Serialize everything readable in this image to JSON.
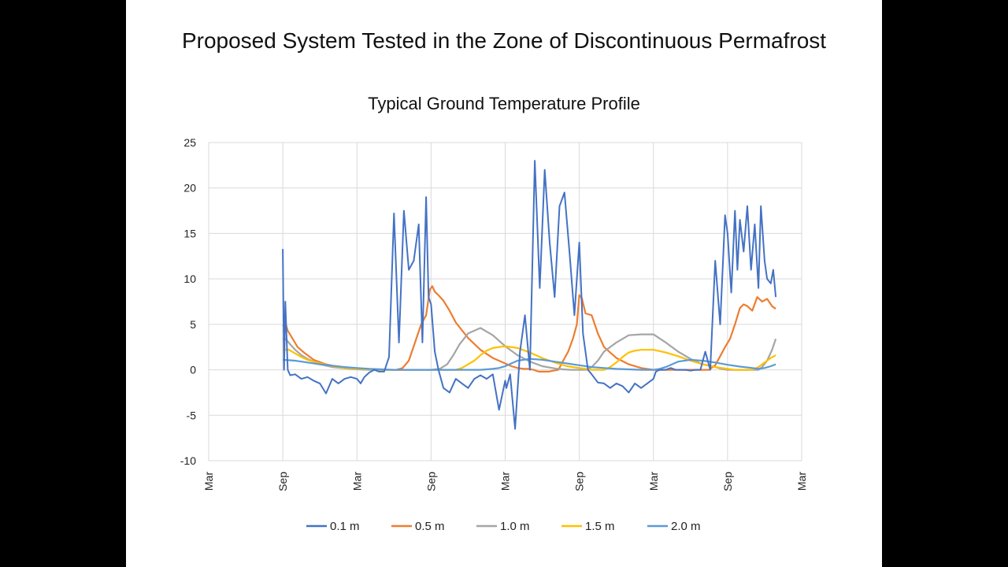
{
  "slide": {
    "title": "Proposed System  Tested in the Zone of Discontinuous Permafrost"
  },
  "chart_data": {
    "type": "line",
    "title": "Typical Ground Temperature Profile",
    "xlabel": "",
    "ylabel": "",
    "ylim": [
      -10,
      25
    ],
    "yticks": [
      25,
      20,
      15,
      10,
      5,
      0,
      -5,
      -10
    ],
    "x_unit": "months since first Mar tick",
    "xlim": [
      0,
      48
    ],
    "xticks": [
      {
        "value": 0,
        "label": "Mar"
      },
      {
        "value": 6,
        "label": "Sep"
      },
      {
        "value": 12,
        "label": "Mar"
      },
      {
        "value": 18,
        "label": "Sep"
      },
      {
        "value": 24,
        "label": "Mar"
      },
      {
        "value": 30,
        "label": "Sep"
      },
      {
        "value": 36,
        "label": "Mar"
      },
      {
        "value": 42,
        "label": "Sep"
      },
      {
        "value": 48,
        "label": "Mar"
      }
    ],
    "grid": true,
    "legend_position": "bottom",
    "series": [
      {
        "name": "0.1 m",
        "color": "#4472C4",
        "x": [
          6.0,
          6.1,
          6.2,
          6.4,
          6.6,
          7.0,
          7.5,
          8.0,
          8.5,
          9.0,
          9.5,
          10.0,
          10.5,
          11.0,
          11.5,
          12.0,
          12.3,
          12.6,
          13.0,
          13.4,
          13.8,
          14.2,
          14.6,
          15.0,
          15.4,
          15.8,
          16.2,
          16.6,
          17.0,
          17.3,
          17.6,
          17.8,
          18.0,
          18.3,
          18.6,
          19.0,
          19.5,
          20.0,
          20.5,
          21.0,
          21.5,
          22.0,
          22.5,
          23.0,
          23.5,
          24.0,
          24.1,
          24.4,
          24.8,
          25.2,
          25.6,
          26.0,
          26.4,
          26.8,
          27.2,
          27.6,
          28.0,
          28.4,
          28.8,
          29.2,
          29.6,
          30.0,
          30.3,
          30.7,
          31.0,
          31.5,
          32.0,
          32.5,
          33.0,
          33.5,
          34.0,
          34.5,
          35.0,
          35.5,
          36.0,
          36.2,
          36.5,
          37.0,
          37.4,
          37.8,
          38.2,
          38.6,
          39.0,
          39.4,
          39.8,
          40.2,
          40.6,
          41.0,
          41.4,
          41.8,
          42.0,
          42.3,
          42.6,
          42.8,
          43.0,
          43.3,
          43.6,
          43.9,
          44.2,
          44.5,
          44.7,
          45.0,
          45.2,
          45.5,
          45.7,
          45.9
        ],
        "y": [
          13.3,
          0.0,
          7.5,
          0.0,
          -0.6,
          -0.5,
          -1.0,
          -0.8,
          -1.2,
          -1.5,
          -2.6,
          -1.0,
          -1.5,
          -1.0,
          -0.8,
          -1.0,
          -1.5,
          -0.8,
          -0.3,
          0.0,
          -0.2,
          -0.2,
          1.4,
          17.2,
          3.0,
          17.5,
          11.0,
          12.0,
          16.0,
          3.0,
          19.0,
          8.0,
          7.2,
          2.0,
          0.0,
          -2.0,
          -2.5,
          -1.0,
          -1.5,
          -2.0,
          -1.0,
          -0.6,
          -1.0,
          -0.5,
          -4.4,
          -1.2,
          -2.0,
          -0.5,
          -6.5,
          2.0,
          6.0,
          0.0,
          23.0,
          9.0,
          22.0,
          14.0,
          8.0,
          18.0,
          19.5,
          13.0,
          6.0,
          14.0,
          4.0,
          0.0,
          -0.5,
          -1.4,
          -1.5,
          -2.0,
          -1.5,
          -1.8,
          -2.5,
          -1.5,
          -2.0,
          -1.5,
          -1.0,
          -0.2,
          0.0,
          0.0,
          0.2,
          0.0,
          0.0,
          0.0,
          -0.1,
          0.0,
          0.0,
          2.0,
          0.0,
          12.0,
          5.0,
          17.0,
          15.0,
          8.5,
          17.5,
          11.0,
          16.5,
          13.0,
          18.0,
          11.0,
          16.0,
          9.0,
          18.0,
          12.0,
          10.0,
          9.5,
          11.0,
          8.0
        ]
      },
      {
        "name": "0.5 m",
        "color": "#ED7D31",
        "x": [
          6.0,
          6.2,
          6.4,
          6.8,
          7.2,
          7.8,
          8.5,
          9.5,
          10.5,
          12.0,
          13.5,
          14.5,
          15.2,
          15.7,
          16.2,
          16.7,
          17.2,
          17.6,
          17.9,
          18.1,
          18.3,
          18.6,
          19.0,
          19.5,
          20.0,
          21.0,
          22.0,
          23.0,
          24.0,
          24.5,
          25.0,
          25.5,
          25.9,
          26.3,
          26.7,
          27.1,
          27.5,
          27.9,
          28.3,
          28.7,
          29.1,
          29.5,
          29.8,
          30.0,
          30.2,
          30.5,
          31.0,
          31.5,
          32.0,
          33.0,
          34.0,
          35.0,
          36.0,
          37.0,
          38.0,
          39.0,
          39.8,
          40.5,
          41.0,
          41.4,
          41.8,
          42.2,
          42.6,
          43.0,
          43.3,
          43.6,
          44.0,
          44.4,
          44.8,
          45.2,
          45.6,
          45.9
        ],
        "y": [
          4.8,
          5.2,
          4.3,
          3.4,
          2.5,
          1.8,
          1.1,
          0.6,
          0.3,
          0.1,
          0.0,
          0.0,
          0.0,
          0.2,
          1.0,
          3.0,
          5.0,
          6.0,
          8.8,
          9.2,
          8.6,
          8.2,
          7.6,
          6.5,
          5.2,
          3.5,
          2.2,
          1.3,
          0.7,
          0.4,
          0.2,
          0.1,
          0.1,
          0.0,
          -0.2,
          -0.2,
          -0.2,
          -0.1,
          0.0,
          1.0,
          2.0,
          3.5,
          5.0,
          8.2,
          7.9,
          6.2,
          6.0,
          4.0,
          2.5,
          1.3,
          0.6,
          0.2,
          0.0,
          0.0,
          0.0,
          0.0,
          0.0,
          0.0,
          0.5,
          1.5,
          2.5,
          3.4,
          5.0,
          6.8,
          7.2,
          7.0,
          6.5,
          8.0,
          7.5,
          7.8,
          7.0,
          6.7
        ]
      },
      {
        "name": "1.0 m",
        "color": "#A5A5A5",
        "x": [
          6.0,
          6.3,
          6.6,
          7.0,
          7.5,
          8.0,
          9.0,
          10.0,
          11.0,
          12.0,
          13.0,
          14.0,
          15.0,
          16.0,
          17.0,
          18.0,
          18.7,
          19.3,
          19.8,
          20.3,
          21.0,
          22.0,
          23.0,
          24.0,
          25.0,
          26.0,
          27.0,
          28.0,
          28.7,
          29.3,
          29.8,
          30.2,
          30.6,
          31.0,
          31.5,
          32.0,
          33.0,
          34.0,
          35.0,
          36.0,
          37.0,
          38.0,
          39.0,
          40.0,
          41.0,
          41.5,
          42.0,
          42.5,
          43.0,
          43.4,
          43.8,
          44.2,
          44.5,
          44.8,
          45.2,
          45.6,
          45.9
        ],
        "y": [
          3.5,
          3.3,
          2.8,
          2.2,
          1.6,
          1.2,
          0.6,
          0.3,
          0.15,
          0.05,
          0.0,
          0.0,
          0.0,
          0.0,
          0.0,
          0.0,
          0.1,
          0.6,
          1.6,
          2.8,
          4.0,
          4.6,
          3.8,
          2.6,
          1.6,
          0.9,
          0.4,
          0.15,
          0.05,
          0.0,
          0.0,
          0.0,
          0.0,
          0.3,
          1.0,
          2.0,
          3.0,
          3.8,
          3.9,
          3.9,
          3.0,
          2.0,
          1.2,
          0.6,
          0.3,
          0.1,
          0.0,
          0.0,
          0.0,
          0.0,
          0.0,
          0.0,
          0.0,
          0.3,
          1.0,
          2.2,
          3.4
        ]
      },
      {
        "name": "1.5 m",
        "color": "#FFC000",
        "x": [
          6.0,
          6.5,
          7.0,
          7.5,
          8.0,
          9.0,
          10.0,
          11.0,
          12.0,
          13.0,
          14.0,
          15.0,
          16.0,
          17.0,
          18.0,
          19.0,
          19.5,
          20.0,
          20.5,
          21.0,
          21.5,
          22.0,
          22.5,
          23.0,
          24.0,
          25.0,
          26.0,
          27.0,
          28.0,
          29.0,
          30.0,
          30.5,
          31.0,
          31.5,
          32.0,
          32.5,
          33.0,
          33.5,
          34.0,
          34.5,
          35.0,
          36.0,
          37.0,
          38.0,
          39.0,
          40.0,
          41.0,
          42.0,
          42.5,
          43.0,
          43.5,
          44.0,
          44.5,
          45.0,
          45.5,
          45.9
        ],
        "y": [
          2.2,
          2.2,
          1.8,
          1.4,
          1.1,
          0.7,
          0.4,
          0.2,
          0.1,
          0.05,
          0.0,
          0.0,
          0.0,
          0.0,
          0.0,
          0.0,
          0.0,
          0.0,
          0.2,
          0.6,
          1.0,
          1.6,
          2.1,
          2.4,
          2.6,
          2.4,
          1.9,
          1.3,
          0.8,
          0.4,
          0.2,
          0.1,
          0.0,
          0.0,
          0.0,
          0.3,
          0.8,
          1.4,
          1.9,
          2.1,
          2.2,
          2.2,
          1.9,
          1.5,
          1.0,
          0.6,
          0.3,
          0.1,
          0.0,
          0.0,
          0.0,
          0.0,
          0.3,
          0.8,
          1.3,
          1.6
        ]
      },
      {
        "name": "2.0 m",
        "color": "#5B9BD5",
        "x": [
          6.0,
          7.0,
          8.0,
          9.0,
          10.0,
          11.0,
          12.0,
          13.0,
          14.0,
          15.0,
          16.0,
          17.0,
          18.0,
          19.0,
          20.0,
          21.0,
          22.0,
          22.5,
          23.0,
          23.5,
          24.0,
          24.5,
          25.0,
          26.0,
          27.0,
          28.0,
          29.0,
          30.0,
          31.0,
          32.0,
          33.0,
          34.0,
          35.0,
          35.5,
          36.0,
          36.5,
          37.0,
          37.5,
          38.0,
          39.0,
          40.0,
          41.0,
          42.0,
          43.0,
          44.0,
          44.5,
          45.0,
          45.5,
          45.9
        ],
        "y": [
          1.1,
          1.0,
          0.8,
          0.6,
          0.45,
          0.3,
          0.2,
          0.1,
          0.05,
          0.0,
          0.0,
          0.0,
          0.0,
          0.0,
          0.0,
          0.0,
          0.0,
          0.05,
          0.1,
          0.2,
          0.4,
          0.7,
          1.0,
          1.2,
          1.1,
          0.9,
          0.7,
          0.5,
          0.3,
          0.2,
          0.1,
          0.05,
          0.0,
          0.0,
          0.0,
          0.1,
          0.3,
          0.6,
          0.9,
          1.1,
          1.0,
          0.8,
          0.55,
          0.35,
          0.2,
          0.1,
          0.2,
          0.4,
          0.6
        ]
      }
    ]
  }
}
